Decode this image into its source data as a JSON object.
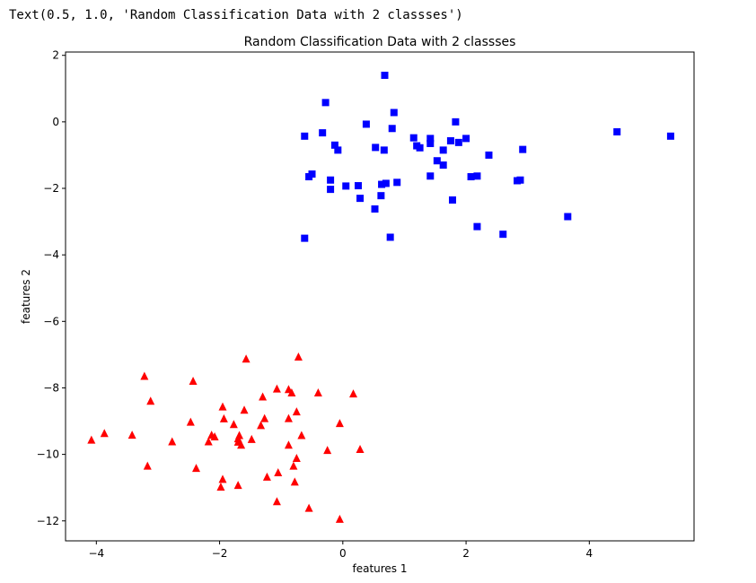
{
  "output_text": "Text(0.5, 1.0, 'Random Classification Data with 2 classses')",
  "chart_data": {
    "type": "scatter",
    "title": "Random Classification Data with 2 classses",
    "xlabel": "features 1",
    "ylabel": "features 2",
    "xlim": [
      -4.5,
      5.7
    ],
    "ylim": [
      -12.6,
      2.1
    ],
    "xticks": [
      -4,
      -2,
      0,
      2,
      4
    ],
    "yticks": [
      2,
      0,
      -2,
      -4,
      -6,
      -8,
      -10,
      -12
    ],
    "grid": false,
    "series": [
      {
        "marker": "square",
        "color": "#0000ff",
        "points": [
          [
            0.68,
            1.4
          ],
          [
            -0.28,
            0.58
          ],
          [
            0.83,
            0.28
          ],
          [
            0.38,
            -0.07
          ],
          [
            1.83,
            0.0
          ],
          [
            -0.33,
            -0.33
          ],
          [
            -0.62,
            -0.43
          ],
          [
            1.15,
            -0.48
          ],
          [
            1.42,
            -0.5
          ],
          [
            2.0,
            -0.5
          ],
          [
            1.75,
            -0.57
          ],
          [
            1.88,
            -0.62
          ],
          [
            1.2,
            -0.72
          ],
          [
            1.42,
            -0.65
          ],
          [
            1.25,
            -0.78
          ],
          [
            -0.13,
            -0.7
          ],
          [
            0.53,
            -0.77
          ],
          [
            0.67,
            -0.85
          ],
          [
            -0.08,
            -0.85
          ],
          [
            1.63,
            -0.85
          ],
          [
            2.92,
            -0.83
          ],
          [
            0.8,
            -0.2
          ],
          [
            2.37,
            -1.0
          ],
          [
            1.53,
            -1.17
          ],
          [
            1.63,
            -1.3
          ],
          [
            4.45,
            -0.3
          ],
          [
            5.32,
            -0.43
          ],
          [
            -0.5,
            -1.57
          ],
          [
            -0.55,
            -1.65
          ],
          [
            -0.2,
            -1.75
          ],
          [
            1.42,
            -1.63
          ],
          [
            2.08,
            -1.65
          ],
          [
            2.18,
            -1.63
          ],
          [
            2.83,
            -1.77
          ],
          [
            2.88,
            -1.75
          ],
          [
            0.88,
            -1.82
          ],
          [
            0.7,
            -1.85
          ],
          [
            0.63,
            -1.88
          ],
          [
            0.25,
            -1.92
          ],
          [
            0.05,
            -1.93
          ],
          [
            -0.2,
            -2.03
          ],
          [
            0.62,
            -2.22
          ],
          [
            0.28,
            -2.3
          ],
          [
            1.78,
            -2.35
          ],
          [
            0.52,
            -2.62
          ],
          [
            3.65,
            -2.85
          ],
          [
            2.18,
            -3.15
          ],
          [
            2.6,
            -3.38
          ],
          [
            -0.62,
            -3.5
          ],
          [
            0.77,
            -3.47
          ]
        ]
      },
      {
        "marker": "triangle",
        "color": "#ff0000",
        "points": [
          [
            -0.72,
            -7.07
          ],
          [
            -1.57,
            -7.13
          ],
          [
            -3.22,
            -7.65
          ],
          [
            -2.43,
            -7.8
          ],
          [
            -1.07,
            -8.03
          ],
          [
            -0.88,
            -8.05
          ],
          [
            -0.83,
            -8.15
          ],
          [
            -0.4,
            -8.15
          ],
          [
            0.17,
            -8.18
          ],
          [
            -1.3,
            -8.27
          ],
          [
            -3.12,
            -8.4
          ],
          [
            -1.95,
            -8.57
          ],
          [
            -1.6,
            -8.67
          ],
          [
            -0.75,
            -8.72
          ],
          [
            -1.27,
            -8.92
          ],
          [
            -0.88,
            -8.92
          ],
          [
            -1.93,
            -8.93
          ],
          [
            -2.47,
            -9.03
          ],
          [
            -0.05,
            -9.07
          ],
          [
            -1.77,
            -9.1
          ],
          [
            -1.33,
            -9.13
          ],
          [
            -3.87,
            -9.37
          ],
          [
            -3.42,
            -9.42
          ],
          [
            -2.13,
            -9.42
          ],
          [
            -0.67,
            -9.43
          ],
          [
            -1.68,
            -9.43
          ],
          [
            -1.7,
            -9.53
          ],
          [
            -2.08,
            -9.47
          ],
          [
            -1.48,
            -9.55
          ],
          [
            -4.08,
            -9.57
          ],
          [
            -2.18,
            -9.62
          ],
          [
            -1.7,
            -9.63
          ],
          [
            -2.77,
            -9.62
          ],
          [
            -1.65,
            -9.72
          ],
          [
            -0.88,
            -9.72
          ],
          [
            -0.25,
            -9.88
          ],
          [
            0.28,
            -9.85
          ],
          [
            -0.75,
            -10.12
          ],
          [
            -3.17,
            -10.35
          ],
          [
            -0.8,
            -10.35
          ],
          [
            -2.38,
            -10.42
          ],
          [
            -1.05,
            -10.55
          ],
          [
            -1.23,
            -10.68
          ],
          [
            -1.95,
            -10.75
          ],
          [
            -0.78,
            -10.83
          ],
          [
            -1.7,
            -10.93
          ],
          [
            -1.98,
            -10.98
          ],
          [
            -1.07,
            -11.42
          ],
          [
            -0.55,
            -11.62
          ],
          [
            -0.05,
            -11.95
          ]
        ]
      }
    ]
  }
}
